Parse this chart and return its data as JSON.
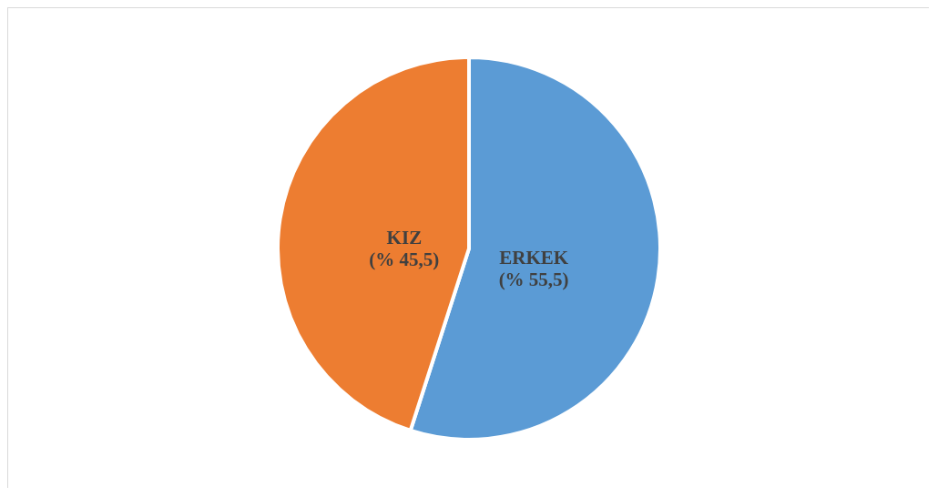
{
  "chart_data": {
    "type": "pie",
    "categories": [
      "ERKEK",
      "KIZ"
    ],
    "values": [
      55.5,
      45.5
    ],
    "colors": [
      "#5b9bd5",
      "#ed7d31"
    ],
    "value_labels": [
      "(% 55,5)",
      "(% 45,5)"
    ]
  }
}
